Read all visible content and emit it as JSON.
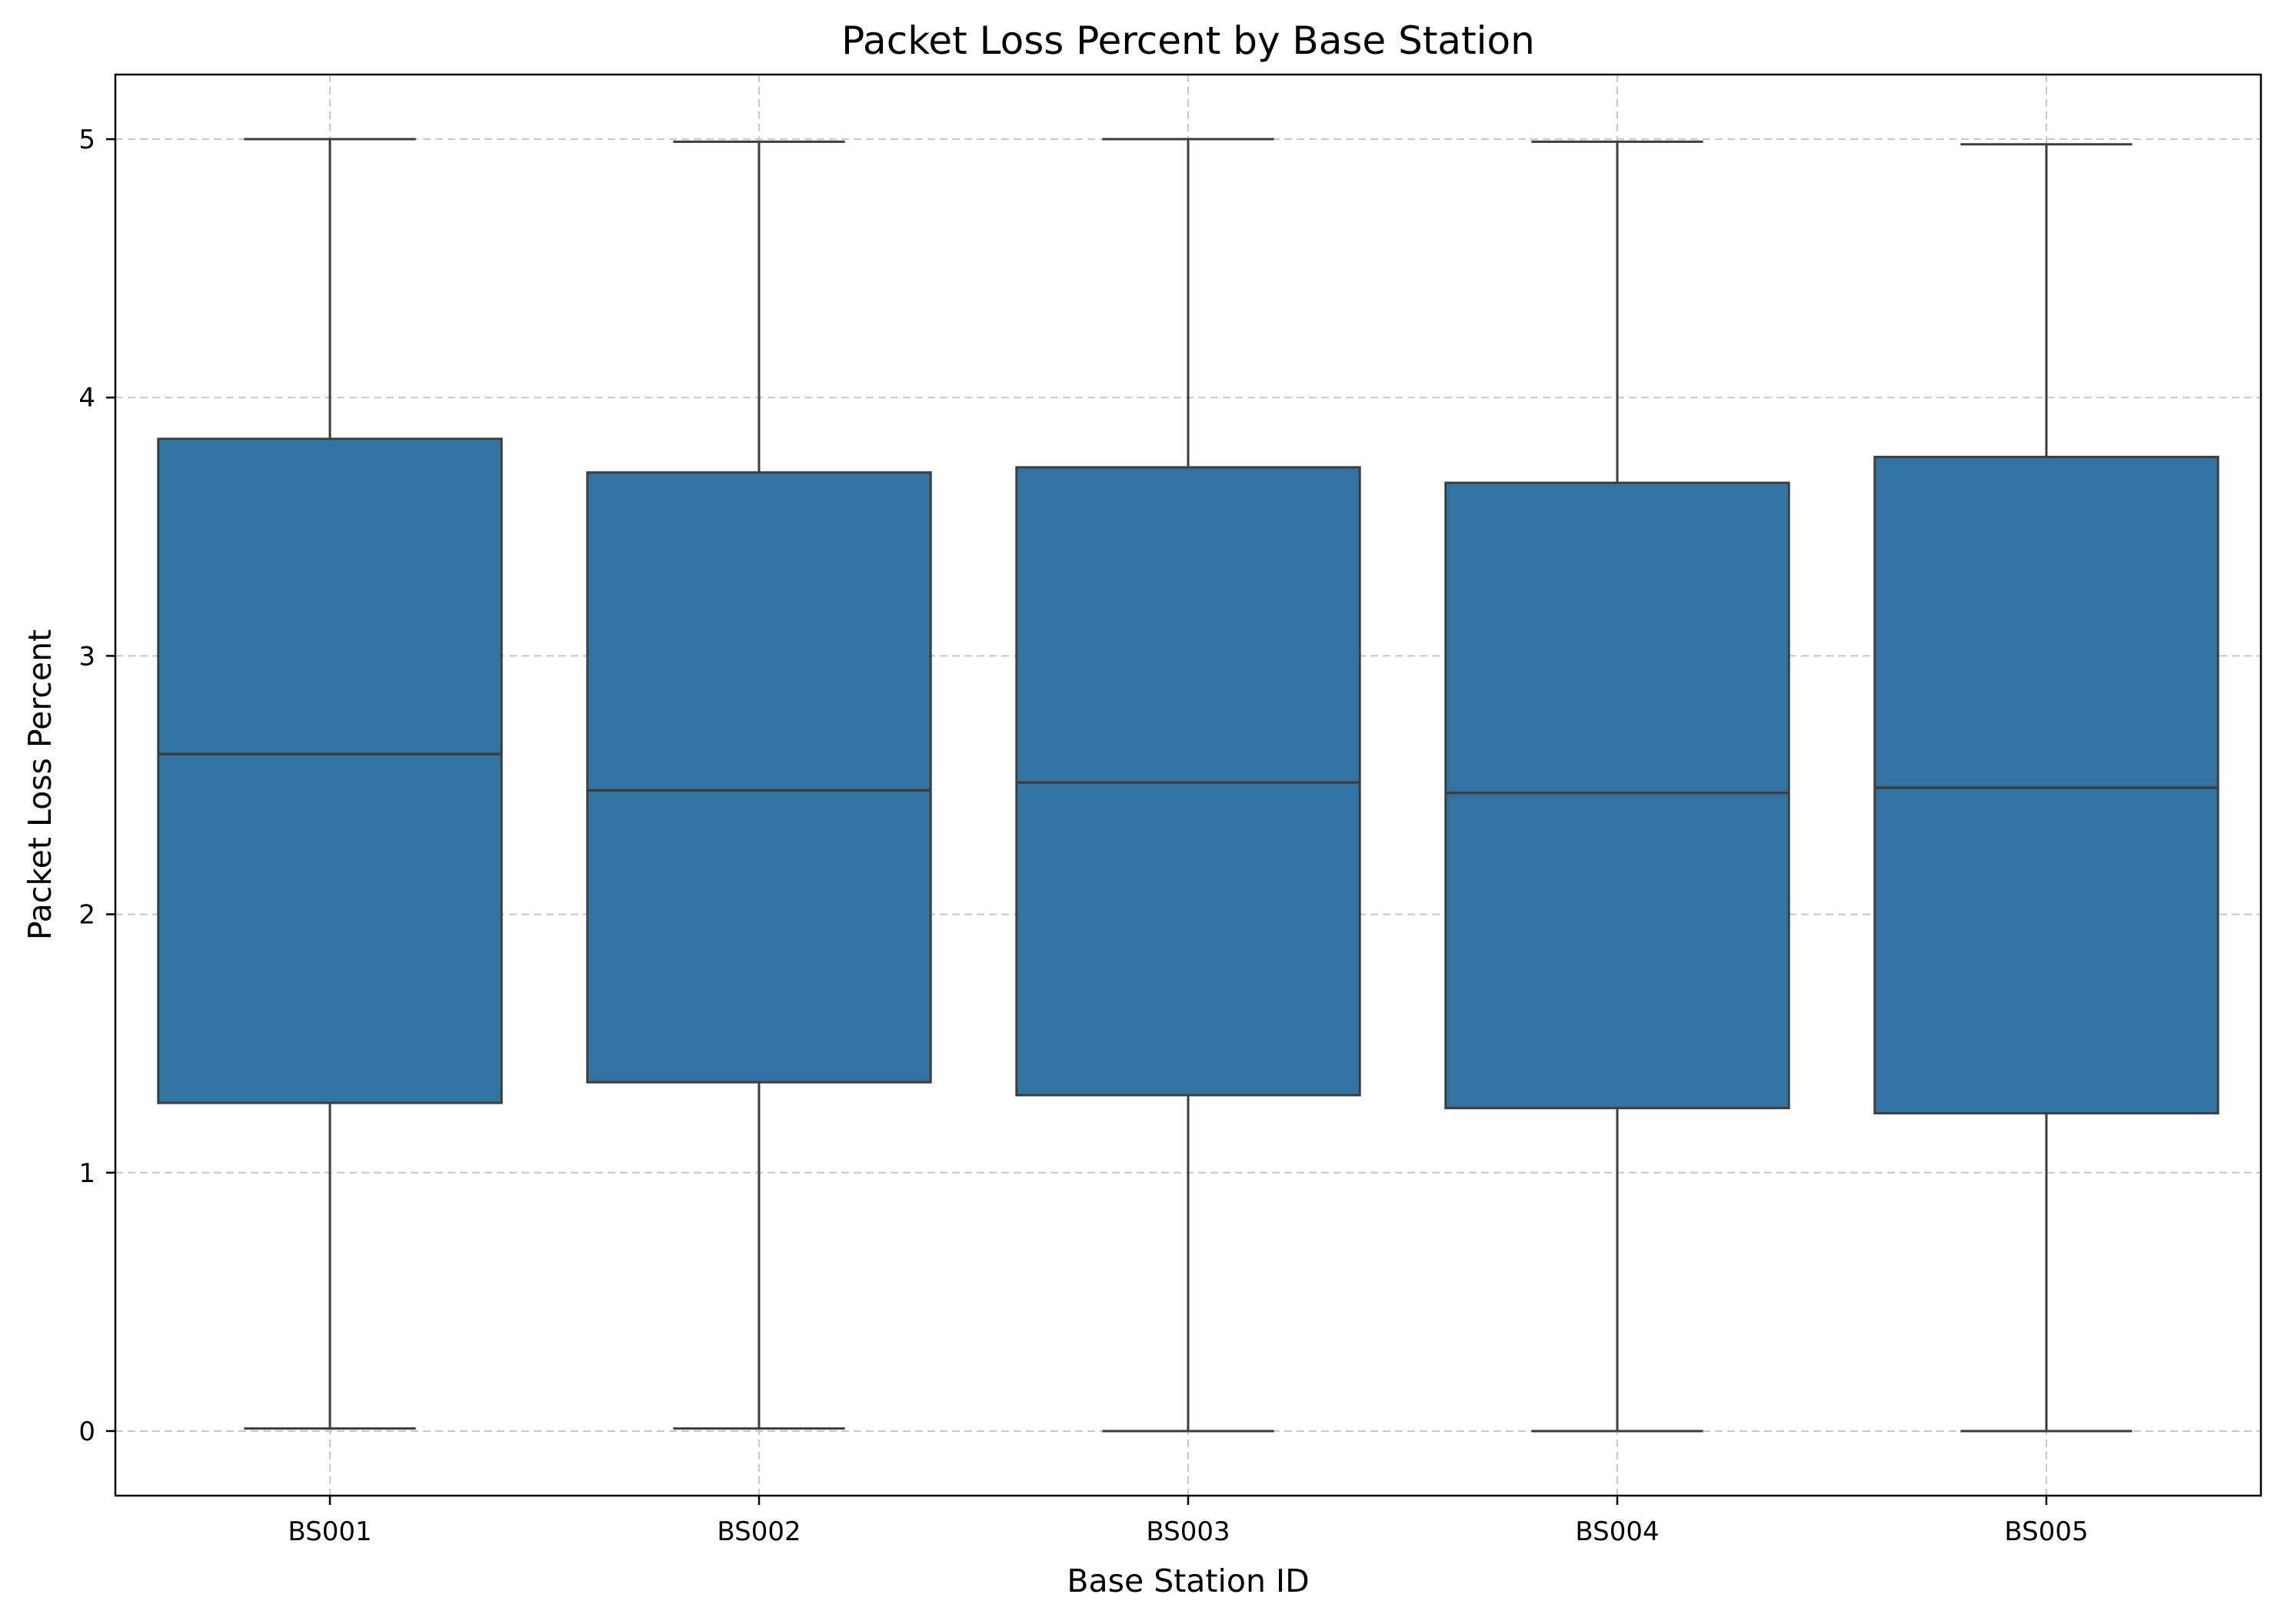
{
  "chart_data": {
    "type": "box",
    "title": "Packet Loss Percent by Base Station",
    "xlabel": "Base Station ID",
    "ylabel": "Packet Loss Percent",
    "ylim": [
      -0.25,
      5.25
    ],
    "yticks": [
      0,
      1,
      2,
      3,
      4,
      5
    ],
    "ytick_labels": [
      "0",
      "1",
      "2",
      "3",
      "4",
      "5"
    ],
    "grid": true,
    "grid_style": "dashed",
    "colors": {
      "box_fill": "#3274a1",
      "line": "#3d3d3d",
      "grid": "#c8c8c8"
    },
    "categories": [
      "BS001",
      "BS002",
      "BS003",
      "BS004",
      "BS005"
    ],
    "boxes": [
      {
        "min": 0.01,
        "q1": 1.27,
        "median": 2.62,
        "q3": 3.84,
        "max": 5.0
      },
      {
        "min": 0.01,
        "q1": 1.35,
        "median": 2.48,
        "q3": 3.71,
        "max": 4.99
      },
      {
        "min": 0.0,
        "q1": 1.3,
        "median": 2.51,
        "q3": 3.73,
        "max": 5.0
      },
      {
        "min": 0.0,
        "q1": 1.25,
        "median": 2.47,
        "q3": 3.67,
        "max": 4.99
      },
      {
        "min": 0.0,
        "q1": 1.23,
        "median": 2.49,
        "q3": 3.77,
        "max": 4.98
      }
    ]
  }
}
